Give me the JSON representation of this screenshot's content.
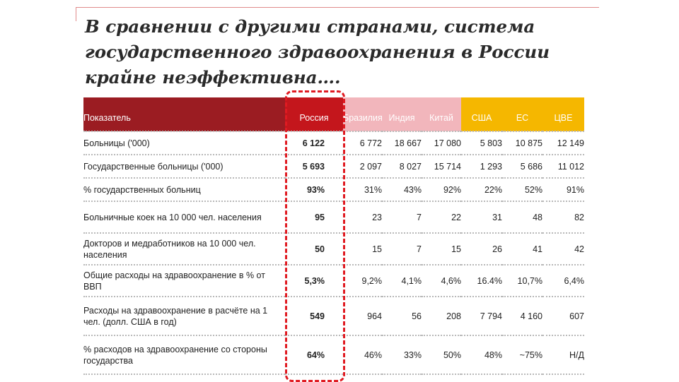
{
  "slide": {
    "title": "В сравнении с другими странами, система государственного здравоохранения в России крайне неэффективна…."
  },
  "table": {
    "headers": [
      "Показатель",
      "Россия",
      "Бразилия",
      "Индия",
      "Китай",
      "США",
      "ЕС",
      "ЦВЕ"
    ],
    "rows": [
      {
        "label": "Больницы ('000)",
        "values": [
          "6 122",
          "6 772",
          "18 667",
          "17 080",
          "5 803",
          "10 875",
          "12 149"
        ]
      },
      {
        "label": "Государственные больницы ('000)",
        "values": [
          "5 693",
          "2 097",
          "8 027",
          "15 714",
          "1 293",
          "5 686",
          "11 012"
        ]
      },
      {
        "label": "% государственных больниц",
        "values": [
          "93%",
          "31%",
          "43%",
          "92%",
          "22%",
          "52%",
          "91%"
        ]
      },
      {
        "label": "Больничные коек на 10 000 чел. населения",
        "values": [
          "95",
          "23",
          "7",
          "22",
          "31",
          "48",
          "82"
        ]
      },
      {
        "label": "Докторов и медработников на 10 000 чел. населения",
        "values": [
          "50",
          "15",
          "7",
          "15",
          "26",
          "41",
          "42"
        ]
      },
      {
        "label": "Общие расходы на здравоохранение в % от ВВП",
        "values": [
          "5,3%",
          "9,2%",
          "4,1%",
          "4,6%",
          "16.4%",
          "10,7%",
          "6,4%"
        ]
      },
      {
        "label": "Расходы на здравоохранение в расчёте на 1 чел. (долл. США в год)",
        "values": [
          "549",
          "964",
          "56",
          "208",
          "7 794",
          "4 160",
          "607"
        ]
      },
      {
        "label": "% расходов на здравоохранение со стороны государства",
        "values": [
          "64%",
          "46%",
          "33%",
          "50%",
          "48%",
          "~75%",
          "Н/Д"
        ]
      }
    ]
  },
  "colors": {
    "label_header": "#9b1c22",
    "russia_header": "#c4161c",
    "brics_header": "#f2b6bc",
    "developed_header": "#f5b700",
    "highlight_frame": "#e01b22"
  }
}
